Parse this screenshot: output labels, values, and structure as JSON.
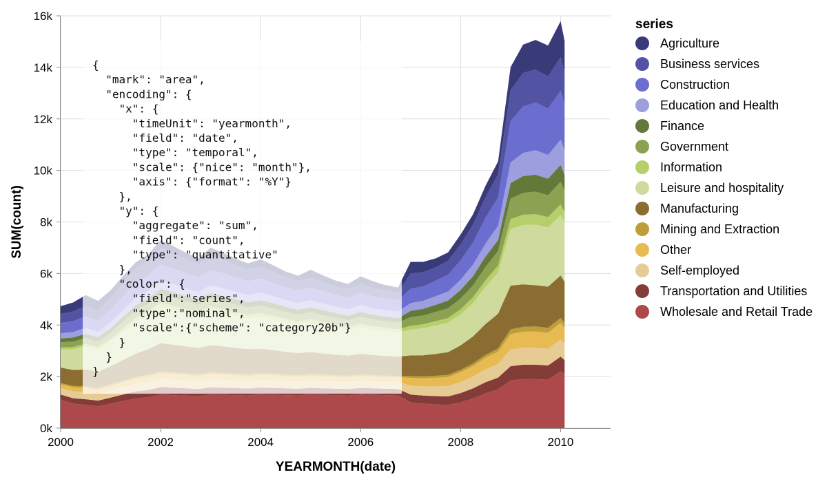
{
  "chart_data": {
    "type": "area",
    "stacked": true,
    "xlabel": "YEARMONTH(date)",
    "ylabel": "SUM(count)",
    "x_tick_labels": [
      "2000",
      "2002",
      "2004",
      "2006",
      "2008",
      "2010"
    ],
    "y_tick_labels": [
      "0k",
      "2k",
      "4k",
      "6k",
      "8k",
      "10k",
      "12k",
      "14k",
      "16k"
    ],
    "ylim": [
      0,
      16000
    ],
    "xlim": [
      2000.0,
      2011.0
    ],
    "grid": true,
    "legend": {
      "title": "series",
      "placement": "right"
    },
    "x": [
      2000.0,
      2000.25,
      2000.5,
      2000.75,
      2001.0,
      2001.25,
      2001.5,
      2001.75,
      2002.0,
      2002.25,
      2002.5,
      2002.75,
      2003.0,
      2003.25,
      2003.5,
      2003.75,
      2004.0,
      2004.25,
      2004.5,
      2004.75,
      2005.0,
      2005.25,
      2005.5,
      2005.75,
      2006.0,
      2006.25,
      2006.5,
      2006.75,
      2007.0,
      2007.25,
      2007.5,
      2007.75,
      2008.0,
      2008.25,
      2008.5,
      2008.75,
      2009.0,
      2009.25,
      2009.5,
      2009.75,
      2010.0,
      2010.08
    ],
    "series": [
      {
        "name": "Agriculture",
        "color": "#393b79",
        "values": [
          300,
          350,
          420,
          380,
          300,
          280,
          250,
          220,
          300,
          280,
          250,
          230,
          300,
          280,
          250,
          240,
          300,
          260,
          220,
          210,
          300,
          260,
          220,
          210,
          300,
          250,
          210,
          200,
          450,
          400,
          350,
          330,
          380,
          400,
          450,
          500,
          900,
          1100,
          1150,
          1200,
          1400,
          1250
        ]
      },
      {
        "name": "Business services",
        "color": "#5254a3",
        "values": [
          350,
          380,
          400,
          390,
          450,
          520,
          580,
          600,
          650,
          600,
          550,
          520,
          550,
          520,
          480,
          450,
          450,
          420,
          380,
          360,
          380,
          350,
          330,
          320,
          350,
          330,
          310,
          300,
          600,
          550,
          520,
          540,
          620,
          700,
          800,
          900,
          1200,
          1300,
          1280,
          1250,
          1300,
          1200
        ]
      },
      {
        "name": "Construction",
        "color": "#6b6ecf",
        "values": [
          400,
          420,
          450,
          430,
          480,
          520,
          560,
          580,
          620,
          600,
          580,
          560,
          600,
          580,
          560,
          540,
          550,
          520,
          500,
          490,
          500,
          480,
          460,
          450,
          470,
          460,
          450,
          440,
          550,
          560,
          600,
          650,
          750,
          850,
          1000,
          1100,
          1600,
          1800,
          1850,
          1800,
          1900,
          1800
        ]
      },
      {
        "name": "Education and Health",
        "color": "#9c9ede",
        "values": [
          200,
          210,
          230,
          220,
          240,
          260,
          280,
          300,
          320,
          310,
          300,
          290,
          310,
          300,
          290,
          280,
          290,
          280,
          270,
          260,
          270,
          260,
          250,
          250,
          260,
          255,
          250,
          250,
          300,
          310,
          330,
          350,
          400,
          450,
          500,
          550,
          800,
          900,
          950,
          920,
          980,
          950
        ]
      },
      {
        "name": "Finance",
        "color": "#637939",
        "values": [
          150,
          160,
          170,
          165,
          180,
          190,
          200,
          210,
          220,
          215,
          210,
          205,
          215,
          210,
          205,
          200,
          205,
          200,
          195,
          190,
          195,
          190,
          185,
          180,
          190,
          185,
          180,
          180,
          250,
          260,
          280,
          300,
          330,
          360,
          400,
          430,
          600,
          650,
          660,
          640,
          650,
          620
        ]
      },
      {
        "name": "Government",
        "color": "#8ca252",
        "values": [
          200,
          210,
          220,
          215,
          240,
          260,
          280,
          300,
          320,
          310,
          300,
          290,
          310,
          300,
          290,
          280,
          285,
          280,
          270,
          265,
          270,
          265,
          260,
          255,
          265,
          260,
          255,
          255,
          330,
          340,
          360,
          380,
          420,
          460,
          520,
          560,
          800,
          850,
          870,
          850,
          880,
          840
        ]
      },
      {
        "name": "Information",
        "color": "#b5cf6b",
        "values": [
          80,
          90,
          100,
          95,
          110,
          130,
          150,
          160,
          170,
          160,
          150,
          140,
          150,
          145,
          140,
          135,
          140,
          135,
          130,
          125,
          130,
          125,
          120,
          118,
          125,
          120,
          118,
          115,
          150,
          155,
          165,
          175,
          200,
          220,
          250,
          270,
          380,
          400,
          410,
          400,
          410,
          390
        ]
      },
      {
        "name": "Leisure and hospitality",
        "color": "#cedb9c",
        "values": [
          700,
          800,
          900,
          850,
          950,
          1100,
          1250,
          1300,
          1400,
          1350,
          1300,
          1250,
          1350,
          1300,
          1250,
          1200,
          1250,
          1200,
          1150,
          1100,
          1150,
          1100,
          1050,
          1000,
          1050,
          1000,
          980,
          950,
          1000,
          1050,
          1100,
          1150,
          1200,
          1300,
          1450,
          1600,
          2200,
          2300,
          2350,
          2300,
          2350,
          2300
        ]
      },
      {
        "name": "Manufacturing",
        "color": "#8c6d31",
        "values": [
          600,
          620,
          650,
          640,
          700,
          800,
          900,
          1000,
          1100,
          1080,
          1050,
          1020,
          1050,
          1030,
          1000,
          980,
          950,
          920,
          880,
          860,
          850,
          820,
          800,
          780,
          800,
          780,
          760,
          750,
          800,
          820,
          850,
          880,
          950,
          1050,
          1200,
          1350,
          1700,
          1650,
          1600,
          1600,
          1650,
          1600
        ]
      },
      {
        "name": "Mining and Extraction",
        "color": "#bd9e39",
        "values": [
          50,
          55,
          60,
          58,
          60,
          62,
          64,
          65,
          66,
          65,
          64,
          63,
          64,
          63,
          62,
          61,
          62,
          60,
          58,
          57,
          58,
          57,
          56,
          55,
          56,
          55,
          54,
          54,
          70,
          75,
          80,
          85,
          90,
          100,
          110,
          120,
          180,
          190,
          195,
          190,
          195,
          185
        ]
      },
      {
        "name": "Other",
        "color": "#e7ba52",
        "values": [
          150,
          160,
          170,
          165,
          180,
          190,
          200,
          210,
          220,
          215,
          210,
          205,
          210,
          205,
          200,
          195,
          200,
          195,
          190,
          185,
          190,
          185,
          180,
          178,
          185,
          180,
          178,
          175,
          300,
          310,
          330,
          350,
          380,
          410,
          450,
          480,
          600,
          620,
          630,
          620,
          640,
          610
        ]
      },
      {
        "name": "Self-employed",
        "color": "#e7cb94",
        "values": [
          250,
          260,
          270,
          265,
          280,
          290,
          300,
          310,
          320,
          315,
          310,
          305,
          310,
          305,
          300,
          295,
          300,
          295,
          290,
          285,
          290,
          285,
          280,
          278,
          285,
          280,
          278,
          275,
          350,
          360,
          380,
          400,
          430,
          460,
          500,
          530,
          650,
          660,
          660,
          650,
          670,
          640
        ]
      },
      {
        "name": "Transportation and Utilities",
        "color": "#843c39",
        "values": [
          200,
          210,
          220,
          215,
          230,
          250,
          270,
          280,
          290,
          285,
          280,
          275,
          280,
          275,
          270,
          265,
          270,
          265,
          260,
          255,
          260,
          255,
          250,
          248,
          255,
          250,
          248,
          245,
          300,
          310,
          320,
          330,
          360,
          390,
          430,
          460,
          550,
          560,
          560,
          550,
          570,
          540
        ]
      },
      {
        "name": "Wholesale and Retail Trade",
        "color": "#ad494a",
        "values": [
          1100,
          950,
          900,
          850,
          950,
          1050,
          1150,
          1200,
          1300,
          1280,
          1260,
          1240,
          1300,
          1290,
          1280,
          1270,
          1300,
          1290,
          1280,
          1270,
          1300,
          1290,
          1280,
          1270,
          1300,
          1290,
          1280,
          1270,
          1000,
          950,
          920,
          900,
          1000,
          1150,
          1350,
          1500,
          1850,
          1900,
          1900,
          1880,
          2200,
          2100
        ]
      }
    ]
  },
  "spec_overlay": {
    "lines": [
      "{",
      "  \"mark\": \"area\",",
      "  \"encoding\": {",
      "    \"x\": {",
      "      \"timeUnit\": \"yearmonth\",",
      "      \"field\": \"date\",",
      "      \"type\": \"temporal\",",
      "      \"scale\": {\"nice\": \"month\"},",
      "      \"axis\": {\"format\": \"%Y\"}",
      "    },",
      "    \"y\": {",
      "      \"aggregate\": \"sum\",",
      "      \"field\": \"count\",",
      "      \"type\": \"quantitative\"",
      "    },",
      "    \"color\": {",
      "      \"field\":\"series\",",
      "      \"type\":\"nominal\",",
      "      \"scale\":{\"scheme\": \"category20b\"}",
      "    }",
      "  }",
      "}"
    ]
  }
}
